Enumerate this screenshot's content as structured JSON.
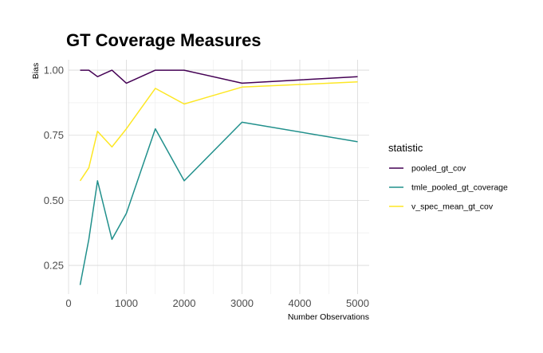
{
  "chart_data": {
    "type": "line",
    "title": "GT Coverage Measures",
    "xlabel": "Number Observations",
    "ylabel": "Bias",
    "xlim": [
      0,
      5200
    ],
    "ylim": [
      0.14,
      1.04
    ],
    "x_ticks": [
      0,
      1000,
      2000,
      3000,
      4000,
      5000
    ],
    "x_tick_labels": [
      "0",
      "1000",
      "2000",
      "3000",
      "4000",
      "5000"
    ],
    "y_ticks": [
      0.25,
      0.5,
      0.75,
      1.0
    ],
    "y_tick_labels": [
      "0.25",
      "0.50",
      "0.75",
      "1.00"
    ],
    "grid": true,
    "legend": {
      "title": "statistic",
      "placement": "right"
    },
    "x": [
      200,
      350,
      500,
      750,
      1000,
      1500,
      2000,
      3000,
      5000
    ],
    "series": [
      {
        "name": "pooled_gt_cov",
        "color": "#440154",
        "values": [
          1.0,
          1.0,
          0.975,
          1.0,
          0.95,
          1.0,
          1.0,
          0.95,
          0.975
        ]
      },
      {
        "name": "tmle_pooled_gt_coverage",
        "color": "#21908C",
        "values": [
          0.175,
          0.35,
          0.575,
          0.35,
          0.45,
          0.775,
          0.575,
          0.8,
          0.725
        ]
      },
      {
        "name": "v_spec_mean_gt_cov",
        "color": "#FDE725",
        "values": [
          0.575,
          0.625,
          0.765,
          0.705,
          0.775,
          0.93,
          0.87,
          0.935,
          0.955
        ]
      }
    ]
  }
}
